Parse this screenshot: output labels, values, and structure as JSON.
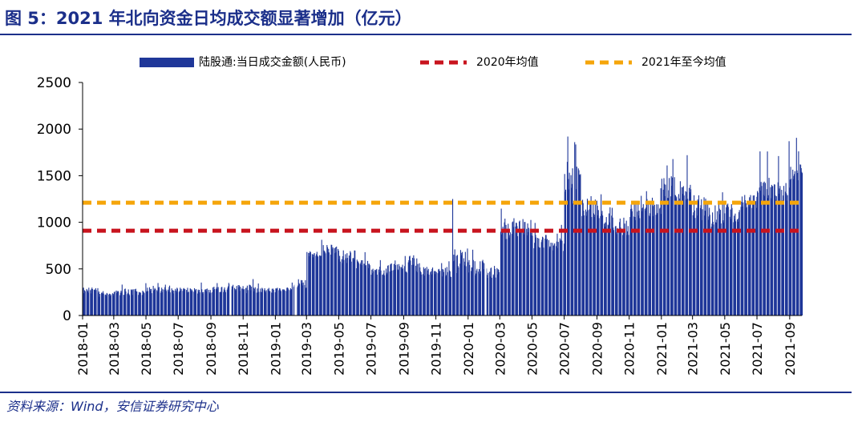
{
  "title": "图 5：2021 年北向资金日均成交额显著增加（亿元）",
  "source": "资料来源：Wind，安信证券研究中心",
  "colors": {
    "bar": "#1f3799",
    "avg2020": "#c8141e",
    "avg2021": "#f5a50a",
    "title": "#1b2f8a"
  },
  "chart_data": {
    "type": "bar",
    "legend_position": "top",
    "grid": false,
    "ylim": [
      0,
      2500
    ],
    "yticks": [
      0,
      500,
      1000,
      1500,
      2000,
      2500
    ],
    "xlabels": [
      "2018-01",
      "2018-03",
      "2018-05",
      "2018-07",
      "2018-09",
      "2018-11",
      "2019-01",
      "2019-03",
      "2019-05",
      "2019-07",
      "2019-09",
      "2019-11",
      "2020-01",
      "2020-03",
      "2020-05",
      "2020-07",
      "2020-09",
      "2020-11",
      "2021-01",
      "2021-03",
      "2021-05",
      "2021-07",
      "2021-09"
    ],
    "series": [
      {
        "name": "陆股通:当日成交金额(人民币)",
        "type": "bar",
        "monthly_values": [
          [
            230,
            300
          ],
          [
            200,
            250
          ],
          [
            210,
            290
          ],
          [
            220,
            300
          ],
          [
            230,
            310
          ],
          [
            230,
            320
          ],
          [
            240,
            300
          ],
          [
            230,
            300
          ],
          [
            250,
            310
          ],
          [
            240,
            330
          ],
          [
            240,
            360
          ],
          [
            240,
            300
          ],
          [
            260,
            300
          ],
          [
            290,
            390
          ],
          [
            620,
            700
          ],
          [
            650,
            760
          ],
          [
            560,
            700
          ],
          [
            500,
            600
          ],
          [
            430,
            520
          ],
          [
            470,
            560
          ],
          [
            450,
            650
          ],
          [
            420,
            520
          ],
          [
            410,
            500
          ],
          [
            430,
            720
          ],
          [
            430,
            600
          ],
          [
            400,
            560
          ],
          [
            820,
            1050
          ],
          [
            850,
            1050
          ],
          [
            720,
            880
          ],
          [
            690,
            830
          ],
          [
            1200,
            1650
          ],
          [
            1050,
            1300
          ],
          [
            950,
            1200
          ],
          [
            850,
            1050
          ],
          [
            970,
            1200
          ],
          [
            1050,
            1250
          ],
          [
            1250,
            1500
          ],
          [
            1200,
            1450
          ],
          [
            1000,
            1300
          ],
          [
            950,
            1200
          ],
          [
            1000,
            1200
          ],
          [
            1150,
            1300
          ],
          [
            1250,
            1500
          ],
          [
            1200,
            1450
          ],
          [
            1450,
            1650
          ]
        ],
        "peaks": [
          {
            "date": "2019-12-02",
            "value": 1250
          },
          {
            "date": "2020-07-07",
            "value": 1920
          },
          {
            "date": "2020-07-20",
            "value": 1860
          },
          {
            "date": "2021-01-11",
            "value": 1610
          },
          {
            "date": "2021-02-18",
            "value": 1720
          },
          {
            "date": "2021-07-20",
            "value": 1760
          },
          {
            "date": "2021-08-30",
            "value": 1870
          }
        ],
        "gaps": [
          "2018-10-08",
          "2019-02-08",
          "2020-02-03"
        ]
      },
      {
        "name": "2020年均值",
        "type": "hline",
        "value": 910
      },
      {
        "name": "2021年至今均值",
        "type": "hline",
        "value": 1210
      }
    ]
  }
}
